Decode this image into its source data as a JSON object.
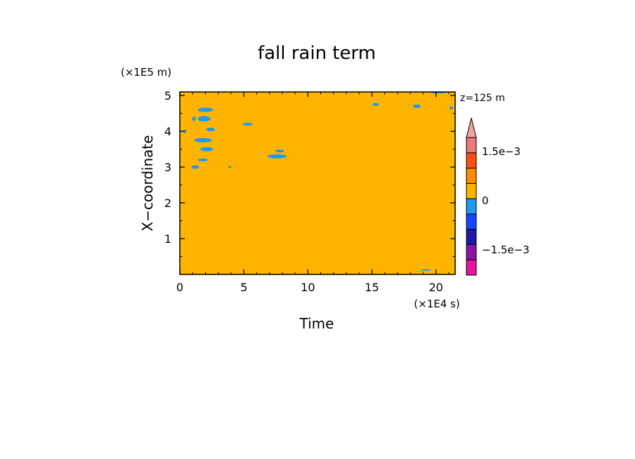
{
  "chart_data": {
    "type": "heatmap",
    "title": "fall rain term",
    "xlabel": "Time",
    "ylabel": "X−coordinate",
    "x_unit": "(×1E4 s)",
    "y_unit": "(×1E5 m)",
    "annotation": "z=125 m",
    "xlim": [
      0,
      21.5
    ],
    "ylim": [
      0,
      5.1
    ],
    "x_ticks": [
      0,
      5,
      10,
      15,
      20
    ],
    "x_tick_labels": [
      "0",
      "5",
      "10",
      "15",
      "20"
    ],
    "y_ticks": [
      1,
      2,
      3,
      4,
      5
    ],
    "y_tick_labels": [
      "1",
      "2",
      "3",
      "4",
      "5"
    ],
    "background_value_color": "#ffb400",
    "patch_color": "#1e9bf0",
    "patches": [
      {
        "x": 2.0,
        "y": 4.6,
        "dx": 1.2,
        "dy": 0.12
      },
      {
        "x": 1.9,
        "y": 4.35,
        "dx": 1.0,
        "dy": 0.15
      },
      {
        "x": 2.4,
        "y": 4.05,
        "dx": 0.7,
        "dy": 0.1
      },
      {
        "x": 1.1,
        "y": 4.35,
        "dx": 0.3,
        "dy": 0.12
      },
      {
        "x": 0.4,
        "y": 4.0,
        "dx": 0.25,
        "dy": 0.1
      },
      {
        "x": 1.8,
        "y": 3.75,
        "dx": 1.4,
        "dy": 0.12
      },
      {
        "x": 2.1,
        "y": 3.5,
        "dx": 1.0,
        "dy": 0.12
      },
      {
        "x": 1.8,
        "y": 3.2,
        "dx": 0.8,
        "dy": 0.08
      },
      {
        "x": 1.2,
        "y": 3.0,
        "dx": 0.6,
        "dy": 0.1
      },
      {
        "x": 3.9,
        "y": 3.0,
        "dx": 0.25,
        "dy": 0.06
      },
      {
        "x": 5.3,
        "y": 4.2,
        "dx": 0.8,
        "dy": 0.08
      },
      {
        "x": 7.6,
        "y": 3.3,
        "dx": 1.5,
        "dy": 0.12
      },
      {
        "x": 7.8,
        "y": 3.45,
        "dx": 0.7,
        "dy": 0.08
      },
      {
        "x": 15.3,
        "y": 4.75,
        "dx": 0.5,
        "dy": 0.08
      },
      {
        "x": 18.5,
        "y": 4.7,
        "dx": 0.6,
        "dy": 0.1
      },
      {
        "x": 20.2,
        "y": 5.08,
        "dx": 1.3,
        "dy": 0.04
      },
      {
        "x": 21.2,
        "y": 4.65,
        "dx": 0.3,
        "dy": 0.08
      },
      {
        "x": 19.2,
        "y": 0.12,
        "dx": 0.8,
        "dy": 0.04
      }
    ],
    "colorbar": {
      "colors": [
        "#e8139f",
        "#8c14a6",
        "#1c1aa6",
        "#1446ff",
        "#1e9bf0",
        "#ffb400",
        "#ff8c00",
        "#ff5014",
        "#f07878",
        "#f5a0a0"
      ],
      "tick_labels": [
        "1.5e−3",
        "0",
        "−1.5e−3"
      ]
    }
  }
}
